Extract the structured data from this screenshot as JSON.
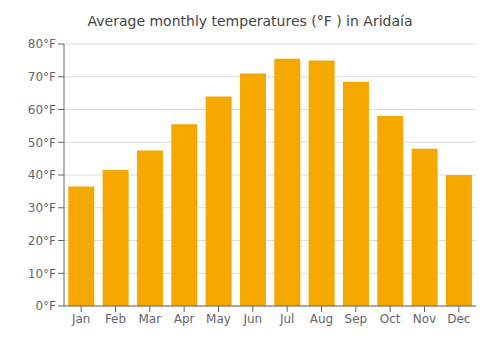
{
  "chart_data": {
    "type": "bar",
    "title": "Average monthly temperatures (°F ) in Aridaía",
    "categories": [
      "Jan",
      "Feb",
      "Mar",
      "Apr",
      "May",
      "Jun",
      "Jul",
      "Aug",
      "Sep",
      "Oct",
      "Nov",
      "Dec"
    ],
    "values": [
      36.5,
      41.5,
      47.5,
      55.5,
      64.0,
      71.0,
      75.5,
      75.0,
      68.5,
      58.0,
      48.0,
      40.0
    ],
    "color": "#F5A800",
    "ylim": [
      0,
      80
    ],
    "yticks": [
      {
        "value": 0,
        "label": "0°F"
      },
      {
        "value": 10,
        "label": "10°F"
      },
      {
        "value": 20,
        "label": "20°F"
      },
      {
        "value": 30,
        "label": "30°F"
      },
      {
        "value": 40,
        "label": "40°F"
      },
      {
        "value": 50,
        "label": "50°F"
      },
      {
        "value": 60,
        "label": "60°F"
      },
      {
        "value": 70,
        "label": "70°F"
      },
      {
        "value": 80,
        "label": "80°F"
      }
    ],
    "grid": true
  }
}
